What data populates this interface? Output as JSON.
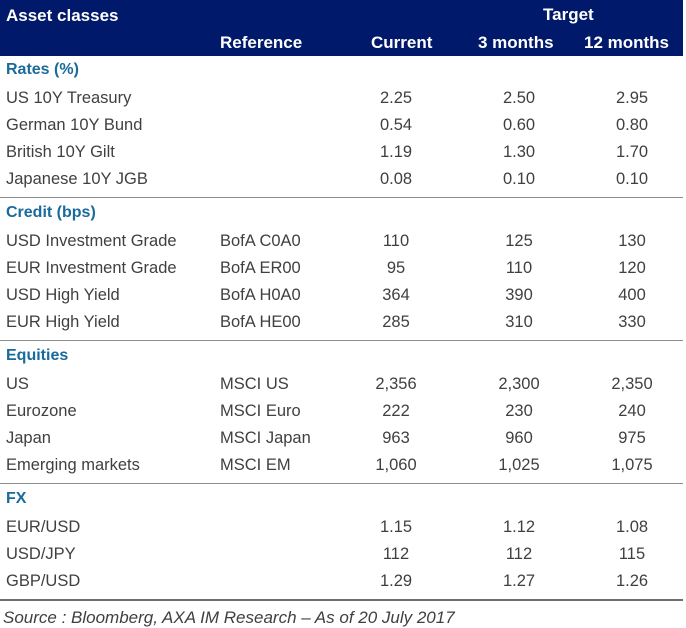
{
  "header": {
    "asset_classes": "Asset classes",
    "target": "Target",
    "reference": "Reference",
    "current": "Current",
    "three_months": "3 months",
    "twelve_months": "12 months"
  },
  "sections": [
    {
      "title": "Rates (%)",
      "rows": [
        {
          "name": "US 10Y Treasury",
          "ref": "",
          "current": "2.25",
          "m3": "2.50",
          "m12": "2.95"
        },
        {
          "name": "German 10Y Bund",
          "ref": "",
          "current": "0.54",
          "m3": "0.60",
          "m12": "0.80"
        },
        {
          "name": "British 10Y Gilt",
          "ref": "",
          "current": "1.19",
          "m3": "1.30",
          "m12": "1.70"
        },
        {
          "name": "Japanese 10Y JGB",
          "ref": "",
          "current": "0.08",
          "m3": "0.10",
          "m12": "0.10"
        }
      ]
    },
    {
      "title": "Credit (bps)",
      "rows": [
        {
          "name": "USD Investment Grade",
          "ref": "BofA C0A0",
          "current": "110",
          "m3": "125",
          "m12": "130"
        },
        {
          "name": "EUR Investment Grade",
          "ref": "BofA ER00",
          "current": "95",
          "m3": "110",
          "m12": "120"
        },
        {
          "name": "USD High Yield",
          "ref": "BofA H0A0",
          "current": "364",
          "m3": "390",
          "m12": "400"
        },
        {
          "name": "EUR High Yield",
          "ref": "BofA HE00",
          "current": "285",
          "m3": "310",
          "m12": "330"
        }
      ]
    },
    {
      "title": "Equities",
      "rows": [
        {
          "name": "US",
          "ref": "MSCI US",
          "current": "2,356",
          "m3": "2,300",
          "m12": "2,350"
        },
        {
          "name": "Eurozone",
          "ref": "MSCI Euro",
          "current": "222",
          "m3": "230",
          "m12": "240"
        },
        {
          "name": "Japan",
          "ref": "MSCI Japan",
          "current": "963",
          "m3": "960",
          "m12": "975"
        },
        {
          "name": "Emerging markets",
          "ref": "MSCI EM",
          "current": "1,060",
          "m3": "1,025",
          "m12": "1,075"
        }
      ]
    },
    {
      "title": "FX",
      "rows": [
        {
          "name": "EUR/USD",
          "ref": "",
          "current": "1.15",
          "m3": "1.12",
          "m12": "1.08"
        },
        {
          "name": "USD/JPY",
          "ref": "",
          "current": "112",
          "m3": "112",
          "m12": "115"
        },
        {
          "name": "GBP/USD",
          "ref": "",
          "current": "1.29",
          "m3": "1.27",
          "m12": "1.26"
        }
      ]
    }
  ],
  "source": "Source : Bloomberg, AXA IM Research – As of 20 July 2017",
  "colors": {
    "header_bg": "#00196a",
    "section_title": "#1a6a9c",
    "text": "#404040"
  }
}
